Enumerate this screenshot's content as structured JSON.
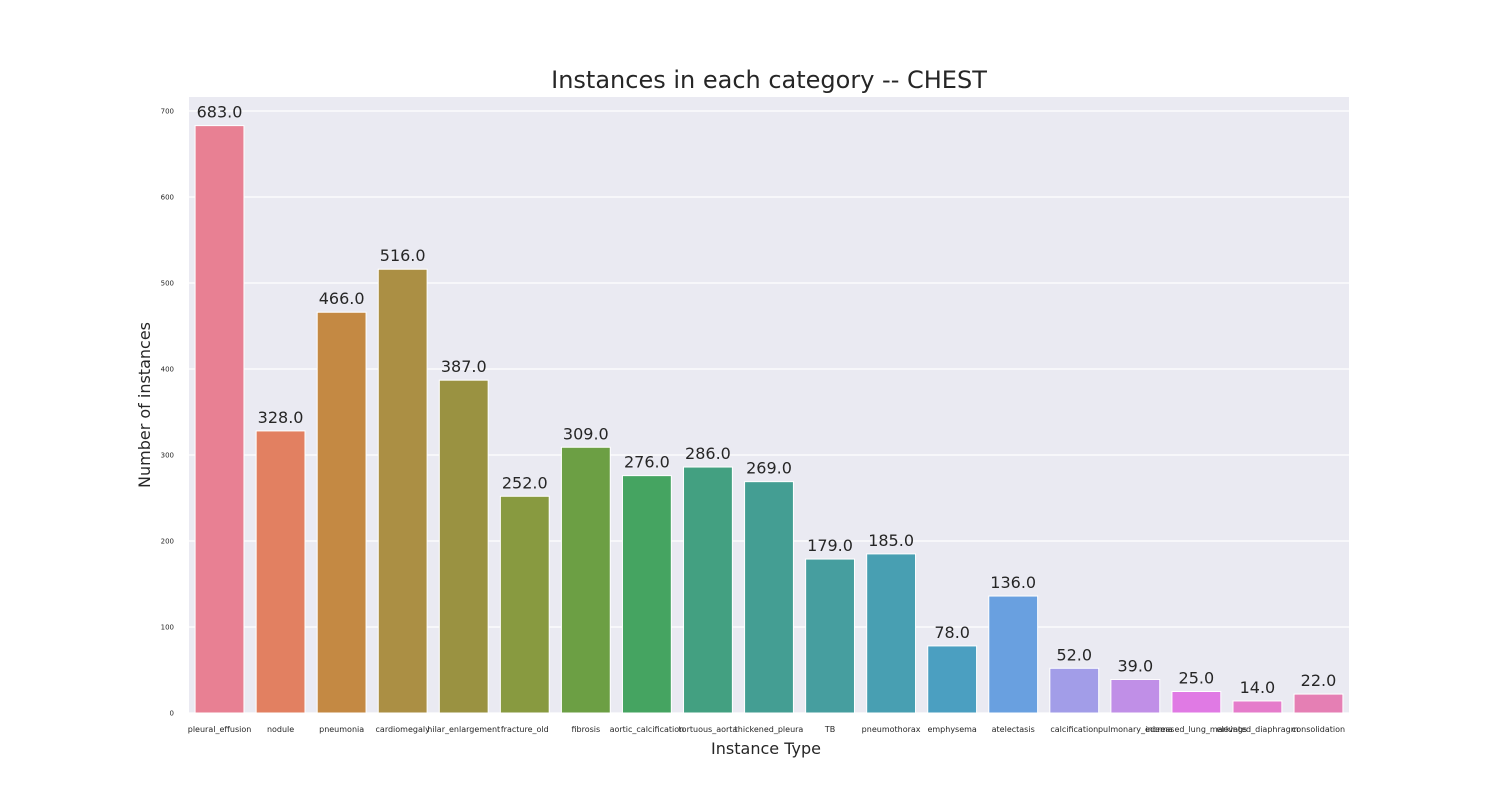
{
  "chart_data": {
    "type": "bar",
    "title": "Instances in each category -- CHEST",
    "xlabel": "Instance Type",
    "ylabel": "Number of instances",
    "ylim": [
      0,
      700
    ],
    "yticks": [
      "0",
      "100",
      "200",
      "300",
      "400",
      "500",
      "600",
      "700"
    ],
    "categories": [
      "pleural_effusion",
      "nodule",
      "pneumonia",
      "cardiomegaly",
      "hilar_enlargement",
      "fracture_old",
      "fibrosis",
      "aortic_calcification",
      "tortuous_aorta",
      "thickened_pleura",
      "TB",
      "pneumothorax",
      "emphysema",
      "atelectasis",
      "calcification",
      "pulmonary_edema",
      "increased_lung_markings",
      "elevated_diaphragm",
      "consolidation"
    ],
    "values": [
      683,
      328,
      466,
      516,
      387,
      252,
      309,
      276,
      286,
      269,
      179,
      185,
      78,
      136,
      52,
      39,
      25,
      14,
      22
    ],
    "value_labels": [
      "683.0",
      "328.0",
      "466.0",
      "516.0",
      "387.0",
      "252.0",
      "309.0",
      "276.0",
      "286.0",
      "269.0",
      "179.0",
      "185.0",
      "78.0",
      "136.0",
      "52.0",
      "39.0",
      "25.0",
      "14.0",
      "22.0"
    ],
    "colors": [
      "#e88093",
      "#e28061",
      "#c48943",
      "#ab8f44",
      "#9a9241",
      "#889a40",
      "#6c9f44",
      "#45a461",
      "#43a081",
      "#449e93",
      "#469e9f",
      "#489fb2",
      "#4b9fc1",
      "#69a0e0",
      "#a29de8",
      "#c08fe7",
      "#e07ae4",
      "#e57ccb",
      "#e57fb4"
    ],
    "plot_background": "#eaeaf2",
    "grid_color": "#ffffff",
    "grid": true,
    "legend": "none"
  }
}
